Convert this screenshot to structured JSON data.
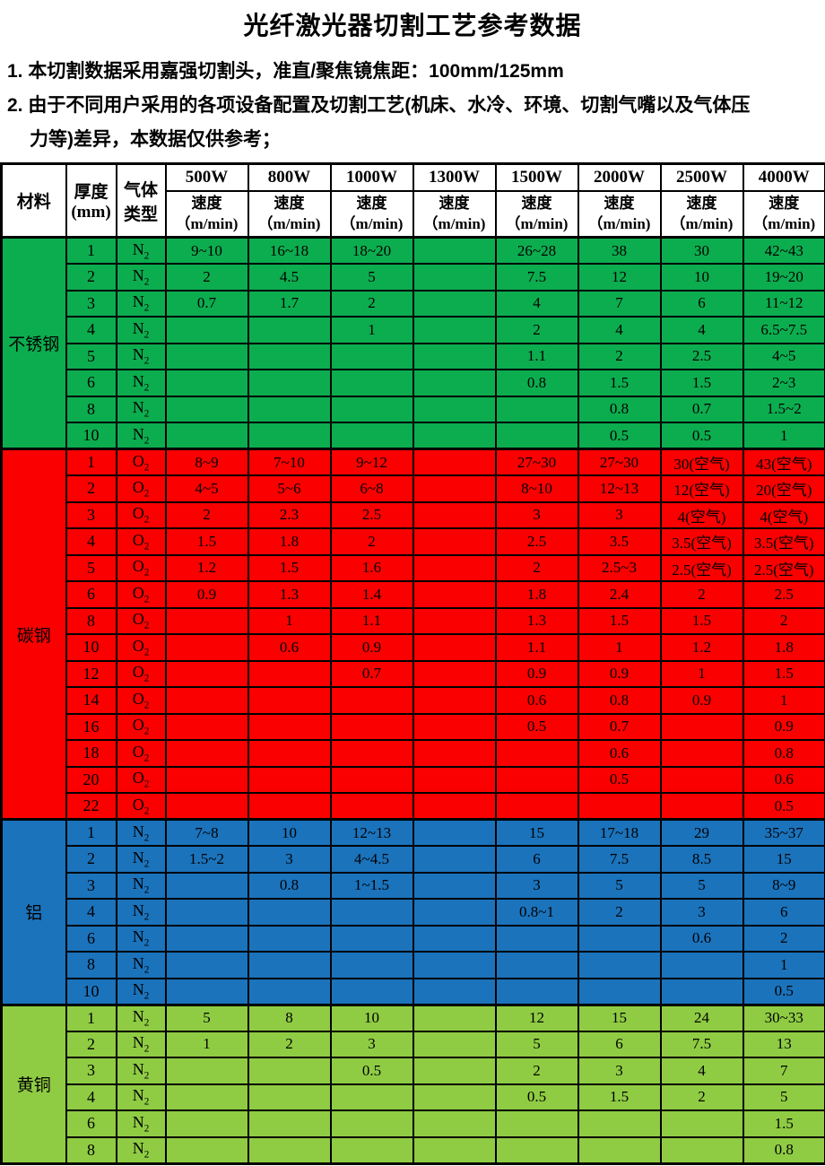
{
  "header": {
    "title": "光纤激光器切割工艺参考数据"
  },
  "notes": [
    "1. 本切割数据采用嘉强切割头，准直/聚焦镜焦距：100mm/125mm",
    "2. 由于不同用户采用的各项设备配置及切割工艺(机床、水冷、环境、切割气嘴以及气体压",
    "力等)差异，本数据仅供参考；"
  ],
  "table": {
    "corner": {
      "material": "材料",
      "thickness_lines": [
        "厚度",
        "(mm)"
      ],
      "gas_lines": [
        "气体",
        "类型"
      ]
    },
    "power_columns": [
      "500W",
      "800W",
      "1000W",
      "1300W",
      "1500W",
      "2000W",
      "2500W",
      "4000W"
    ],
    "speed_label": "速度",
    "speed_unit": "（m/min)",
    "section_colors": {
      "stainless_steel": "#0CAD4F",
      "carbon_steel": "#FA0000",
      "aluminum": "#1B73BC",
      "brass": "#8FCC44"
    },
    "sections": [
      {
        "material": "不锈钢",
        "color": "#0CAD4F",
        "rows": [
          {
            "t": "1",
            "gas": "N2",
            "v": [
              "9~10",
              "16~18",
              "18~20",
              "",
              "26~28",
              "38",
              "30",
              "42~43"
            ]
          },
          {
            "t": "2",
            "gas": "N2",
            "v": [
              "2",
              "4.5",
              "5",
              "",
              "7.5",
              "12",
              "10",
              "19~20"
            ]
          },
          {
            "t": "3",
            "gas": "N2",
            "v": [
              "0.7",
              "1.7",
              "2",
              "",
              "4",
              "7",
              "6",
              "11~12"
            ]
          },
          {
            "t": "4",
            "gas": "N2",
            "v": [
              "",
              "",
              "1",
              "",
              "2",
              "4",
              "4",
              "6.5~7.5"
            ]
          },
          {
            "t": "5",
            "gas": "N2",
            "v": [
              "",
              "",
              "",
              "",
              "1.1",
              "2",
              "2.5",
              "4~5"
            ]
          },
          {
            "t": "6",
            "gas": "N2",
            "v": [
              "",
              "",
              "",
              "",
              "0.8",
              "1.5",
              "1.5",
              "2~3"
            ]
          },
          {
            "t": "8",
            "gas": "N2",
            "v": [
              "",
              "",
              "",
              "",
              "",
              "0.8",
              "0.7",
              "1.5~2"
            ]
          },
          {
            "t": "10",
            "gas": "N2",
            "v": [
              "",
              "",
              "",
              "",
              "",
              "0.5",
              "0.5",
              "1"
            ]
          }
        ]
      },
      {
        "material": "碳钢",
        "color": "#FA0000",
        "rows": [
          {
            "t": "1",
            "gas": "O2",
            "v": [
              "8~9",
              "7~10",
              "9~12",
              "",
              "27~30",
              "27~30",
              "30(空气)",
              "43(空气)"
            ]
          },
          {
            "t": "2",
            "gas": "O2",
            "v": [
              "4~5",
              "5~6",
              "6~8",
              "",
              "8~10",
              "12~13",
              "12(空气)",
              "20(空气)"
            ]
          },
          {
            "t": "3",
            "gas": "O2",
            "v": [
              "2",
              "2.3",
              "2.5",
              "",
              "3",
              "3",
              "4(空气)",
              "4(空气)"
            ]
          },
          {
            "t": "4",
            "gas": "O2",
            "v": [
              "1.5",
              "1.8",
              "2",
              "",
              "2.5",
              "3.5",
              "3.5(空气)",
              "3.5(空气)"
            ]
          },
          {
            "t": "5",
            "gas": "O2",
            "v": [
              "1.2",
              "1.5",
              "1.6",
              "",
              "2",
              "2.5~3",
              "2.5(空气)",
              "2.5(空气)"
            ]
          },
          {
            "t": "6",
            "gas": "O2",
            "v": [
              "0.9",
              "1.3",
              "1.4",
              "",
              "1.8",
              "2.4",
              "2",
              "2.5"
            ]
          },
          {
            "t": "8",
            "gas": "O2",
            "v": [
              "",
              "1",
              "1.1",
              "",
              "1.3",
              "1.5",
              "1.5",
              "2"
            ]
          },
          {
            "t": "10",
            "gas": "O2",
            "v": [
              "",
              "0.6",
              "0.9",
              "",
              "1.1",
              "1",
              "1.2",
              "1.8"
            ]
          },
          {
            "t": "12",
            "gas": "O2",
            "v": [
              "",
              "",
              "0.7",
              "",
              "0.9",
              "0.9",
              "1",
              "1.5"
            ]
          },
          {
            "t": "14",
            "gas": "O2",
            "v": [
              "",
              "",
              "",
              "",
              "0.6",
              "0.8",
              "0.9",
              "1"
            ]
          },
          {
            "t": "16",
            "gas": "O2",
            "v": [
              "",
              "",
              "",
              "",
              "0.5",
              "0.7",
              "",
              "0.9"
            ]
          },
          {
            "t": "18",
            "gas": "O2",
            "v": [
              "",
              "",
              "",
              "",
              "",
              "0.6",
              "",
              "0.8"
            ]
          },
          {
            "t": "20",
            "gas": "O2",
            "v": [
              "",
              "",
              "",
              "",
              "",
              "0.5",
              "",
              "0.6"
            ]
          },
          {
            "t": "22",
            "gas": "O2",
            "v": [
              "",
              "",
              "",
              "",
              "",
              "",
              "",
              "0.5"
            ]
          }
        ]
      },
      {
        "material": "铝",
        "color": "#1B73BC",
        "rows": [
          {
            "t": "1",
            "gas": "N2",
            "v": [
              "7~8",
              "10",
              "12~13",
              "",
              "15",
              "17~18",
              "29",
              "35~37"
            ]
          },
          {
            "t": "2",
            "gas": "N2",
            "v": [
              "1.5~2",
              "3",
              "4~4.5",
              "",
              "6",
              "7.5",
              "8.5",
              "15"
            ]
          },
          {
            "t": "3",
            "gas": "N2",
            "v": [
              "",
              "0.8",
              "1~1.5",
              "",
              "3",
              "5",
              "5",
              "8~9"
            ]
          },
          {
            "t": "4",
            "gas": "N2",
            "v": [
              "",
              "",
              "",
              "",
              "0.8~1",
              "2",
              "3",
              "6"
            ]
          },
          {
            "t": "6",
            "gas": "N2",
            "v": [
              "",
              "",
              "",
              "",
              "",
              "",
              "0.6",
              "2"
            ]
          },
          {
            "t": "8",
            "gas": "N2",
            "v": [
              "",
              "",
              "",
              "",
              "",
              "",
              "",
              "1"
            ]
          },
          {
            "t": "10",
            "gas": "N2",
            "v": [
              "",
              "",
              "",
              "",
              "",
              "",
              "",
              "0.5"
            ]
          }
        ]
      },
      {
        "material": "黄铜",
        "color": "#8FCC44",
        "rows": [
          {
            "t": "1",
            "gas": "N2",
            "v": [
              "5",
              "8",
              "10",
              "",
              "12",
              "15",
              "24",
              "30~33"
            ]
          },
          {
            "t": "2",
            "gas": "N2",
            "v": [
              "1",
              "2",
              "3",
              "",
              "5",
              "6",
              "7.5",
              "13"
            ]
          },
          {
            "t": "3",
            "gas": "N2",
            "v": [
              "",
              "",
              "0.5",
              "",
              "2",
              "3",
              "4",
              "7"
            ]
          },
          {
            "t": "4",
            "gas": "N2",
            "v": [
              "",
              "",
              "",
              "",
              "0.5",
              "1.5",
              "2",
              "5"
            ]
          },
          {
            "t": "6",
            "gas": "N2",
            "v": [
              "",
              "",
              "",
              "",
              "",
              "",
              "",
              "1.5"
            ]
          },
          {
            "t": "8",
            "gas": "N2",
            "v": [
              "",
              "",
              "",
              "",
              "",
              "",
              "",
              "0.8"
            ]
          }
        ]
      }
    ]
  }
}
